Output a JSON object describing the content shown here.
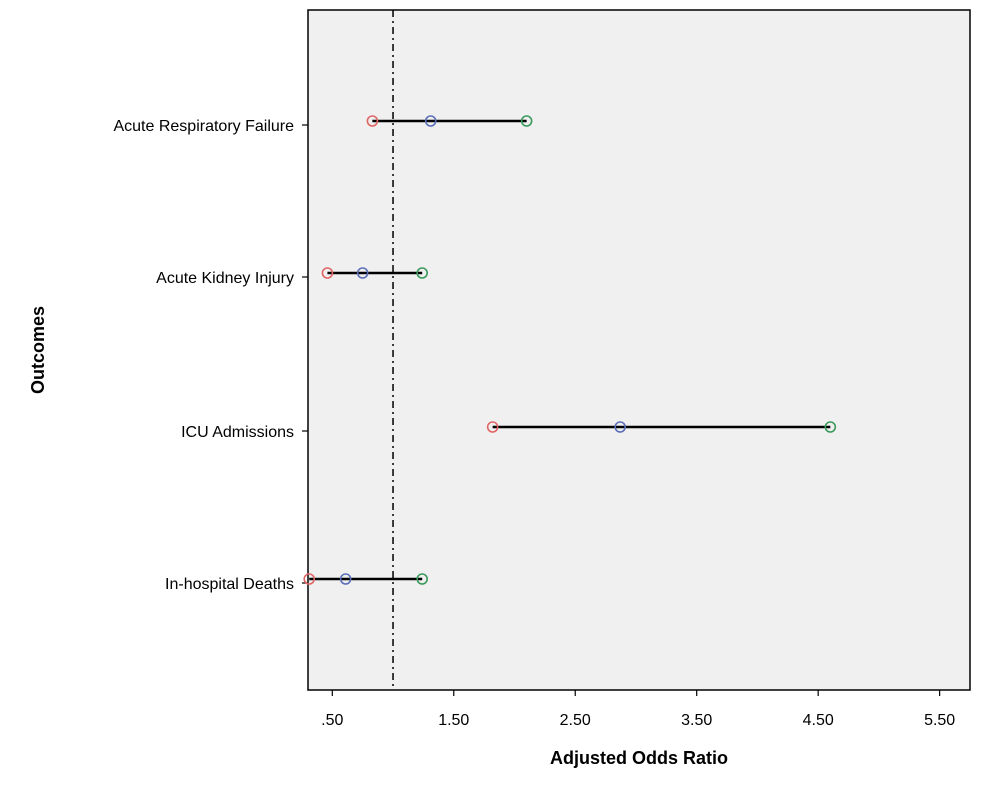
{
  "chart_data": {
    "type": "scatter",
    "subtype": "forest-plot",
    "xlabel": "Adjusted Odds Ratio",
    "ylabel": "Outcomes",
    "xlim": [
      0.3,
      5.75
    ],
    "xticks": [
      0.5,
      1.5,
      2.5,
      3.5,
      4.5,
      5.5
    ],
    "xtick_labels": [
      ".50",
      "1.50",
      "2.50",
      "3.50",
      "4.50",
      "5.50"
    ],
    "reference_line": 1.0,
    "grid": false,
    "categories": [
      "Acute Respiratory Failure",
      "Acute Kidney Injury",
      "ICU Admissions",
      "In-hospital Deaths"
    ],
    "series": [
      {
        "role": "lower",
        "color": "#e06666",
        "values": [
          0.83,
          0.46,
          1.82,
          0.31
        ]
      },
      {
        "role": "estimate",
        "color": "#5b6fb8",
        "values": [
          1.31,
          0.75,
          2.87,
          0.61
        ]
      },
      {
        "role": "upper",
        "color": "#3a9a5c",
        "values": [
          2.1,
          1.24,
          4.6,
          1.24
        ]
      }
    ],
    "colors": {
      "background": "#f0f0f0",
      "frame": "#000000",
      "whisker": "#000000"
    }
  }
}
